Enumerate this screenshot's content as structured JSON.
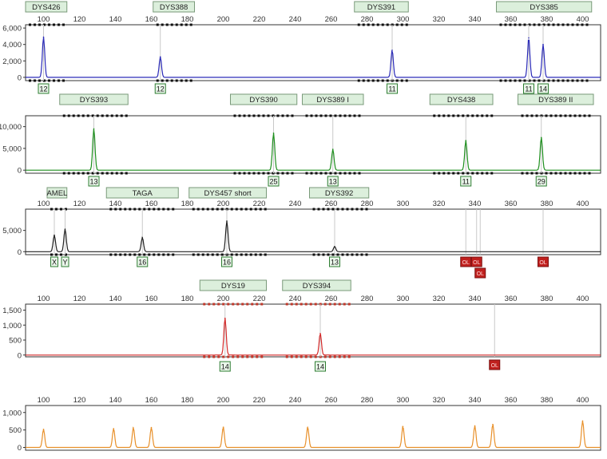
{
  "chart_data": [
    {
      "type": "line",
      "color": "#2b2bb8",
      "xlim": [
        90,
        410
      ],
      "x_ticks": [
        100,
        120,
        140,
        160,
        180,
        200,
        220,
        240,
        260,
        280,
        300,
        320,
        340,
        360,
        380,
        400
      ],
      "y_ticks": [
        0,
        2000,
        4000,
        6000
      ],
      "y_tick_labels": [
        "0",
        "2,000",
        "4,000",
        "6,000"
      ],
      "ylim": [
        -400,
        6400
      ],
      "locus_labels": [
        {
          "name": "DYS426",
          "start": 90,
          "end": 113
        },
        {
          "name": "DYS388",
          "start": 161,
          "end": 184
        },
        {
          "name": "DYS391",
          "start": 273,
          "end": 303
        },
        {
          "name": "DYS385",
          "start": 352,
          "end": 405
        }
      ],
      "peaks": [
        {
          "x": 100,
          "y": 4900
        },
        {
          "x": 165,
          "y": 2500
        },
        {
          "x": 294,
          "y": 3300
        },
        {
          "x": 370,
          "y": 4800
        },
        {
          "x": 378,
          "y": 4000
        }
      ],
      "alleles": [
        {
          "x": 100,
          "label": "12"
        },
        {
          "x": 165,
          "label": "12"
        },
        {
          "x": 294,
          "label": "11"
        },
        {
          "x": 370,
          "label": "11"
        },
        {
          "x": 378,
          "label": "14"
        }
      ]
    },
    {
      "type": "line",
      "color": "#1e8f1e",
      "xlim": [
        90,
        410
      ],
      "y_ticks": [
        0,
        5000,
        10000
      ],
      "y_tick_labels": [
        "0",
        "5,000",
        "10,000"
      ],
      "ylim": [
        -700,
        12500
      ],
      "locus_labels": [
        {
          "name": "DYS393",
          "start": 109,
          "end": 147
        },
        {
          "name": "DYS390",
          "start": 204,
          "end": 241
        },
        {
          "name": "DYS389 I",
          "start": 244,
          "end": 278
        },
        {
          "name": "DYS438",
          "start": 315,
          "end": 350
        },
        {
          "name": "DYS389 II",
          "start": 364,
          "end": 406
        }
      ],
      "peaks": [
        {
          "x": 128,
          "y": 9500
        },
        {
          "x": 228,
          "y": 8500
        },
        {
          "x": 261,
          "y": 4800
        },
        {
          "x": 335,
          "y": 6800
        },
        {
          "x": 377,
          "y": 7500
        }
      ],
      "alleles": [
        {
          "x": 128,
          "label": "13"
        },
        {
          "x": 228,
          "label": "25"
        },
        {
          "x": 261,
          "label": "13"
        },
        {
          "x": 335,
          "label": "11"
        },
        {
          "x": 377,
          "label": "29"
        }
      ]
    },
    {
      "type": "line",
      "color": "#222222",
      "xlim": [
        90,
        410
      ],
      "x_ticks": [
        100,
        120,
        140,
        160,
        180,
        200,
        220,
        240,
        260,
        280,
        300,
        320,
        340,
        360,
        380,
        400
      ],
      "y_ticks": [
        0,
        5000
      ],
      "y_tick_labels": [
        "0",
        "5,000"
      ],
      "ylim": [
        -700,
        10000
      ],
      "locus_labels": [
        {
          "name": "AMEL",
          "start": 102,
          "end": 113
        },
        {
          "name": "TAGA",
          "start": 135,
          "end": 175
        },
        {
          "name": "DYS457 short",
          "start": 181,
          "end": 224
        },
        {
          "name": "DYS392",
          "start": 248,
          "end": 281
        }
      ],
      "peaks": [
        {
          "x": 106,
          "y": 3900
        },
        {
          "x": 112,
          "y": 5300
        },
        {
          "x": 155,
          "y": 3300
        },
        {
          "x": 202,
          "y": 7200
        },
        {
          "x": 262,
          "y": 1200
        }
      ],
      "alleles": [
        {
          "x": 106,
          "label": "X"
        },
        {
          "x": 112,
          "label": "Y"
        },
        {
          "x": 155,
          "label": "16"
        },
        {
          "x": 202,
          "label": "16"
        },
        {
          "x": 262,
          "label": "13"
        }
      ],
      "off_ladder": [
        {
          "x": 335,
          "label": "OL"
        },
        {
          "x": 341,
          "label": "OL"
        },
        {
          "x": 343,
          "label": "OL"
        },
        {
          "x": 378,
          "label": "OL"
        }
      ]
    },
    {
      "type": "line",
      "color": "#d42a2a",
      "xlim": [
        90,
        410
      ],
      "x_ticks": [
        100,
        120,
        140,
        160,
        180,
        200,
        220,
        240,
        260,
        280,
        300,
        320,
        340,
        360,
        380,
        400
      ],
      "y_ticks": [
        0,
        500,
        1000,
        1500
      ],
      "y_tick_labels": [
        "0",
        "500",
        "1,000",
        "1,500"
      ],
      "ylim": [
        -60,
        1700
      ],
      "locus_labels": [
        {
          "name": "DYS19",
          "start": 187,
          "end": 224
        },
        {
          "name": "DYS394",
          "start": 233,
          "end": 271
        }
      ],
      "peaks": [
        {
          "x": 201,
          "y": 1230
        },
        {
          "x": 254,
          "y": 720
        }
      ],
      "alleles": [
        {
          "x": 201,
          "label": "14"
        },
        {
          "x": 254,
          "label": "14"
        }
      ],
      "off_ladder": [
        {
          "x": 351,
          "label": "OL"
        }
      ]
    },
    {
      "type": "line",
      "color": "#e8902a",
      "xlim": [
        90,
        410
      ],
      "x_ticks": [
        100,
        120,
        140,
        160,
        180,
        200,
        220,
        240,
        260,
        280,
        300,
        320,
        340,
        360,
        380,
        400
      ],
      "y_ticks": [
        0,
        500,
        1000
      ],
      "y_tick_labels": [
        "0",
        "500",
        "1,000"
      ],
      "ylim": [
        -80,
        1200
      ],
      "peaks": [
        {
          "x": 100,
          "y": 520
        },
        {
          "x": 139,
          "y": 540
        },
        {
          "x": 150,
          "y": 560
        },
        {
          "x": 160,
          "y": 570
        },
        {
          "x": 200,
          "y": 580
        },
        {
          "x": 247,
          "y": 580
        },
        {
          "x": 300,
          "y": 600
        },
        {
          "x": 340,
          "y": 620
        },
        {
          "x": 350,
          "y": 660
        },
        {
          "x": 400,
          "y": 760
        }
      ]
    }
  ]
}
